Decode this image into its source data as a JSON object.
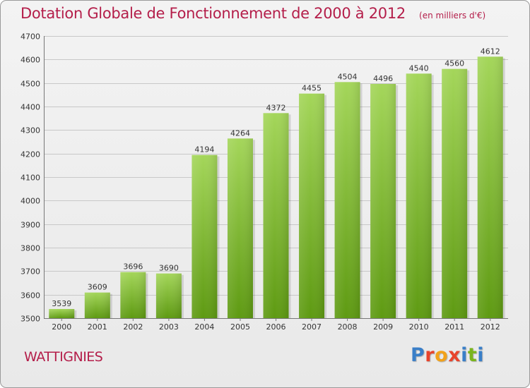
{
  "header": {
    "title": "Dotation Globale de Fonctionnement de 2000 à 2012",
    "subtitle": "(en milliers d'€)"
  },
  "location": "WATTIGNIES",
  "logo": {
    "text": "Proxiti",
    "colors": [
      "#3a7fc8",
      "#e8432c",
      "#f2a21a",
      "#e8432c",
      "#3a7fc8",
      "#7ab51d",
      "#3a7fc8"
    ]
  },
  "colors": {
    "title": "#b41e4a",
    "bar_light": "#a4d65a",
    "bar_dark": "#5e9a12",
    "grid": "#c8c8c8"
  },
  "chart_data": {
    "type": "bar",
    "categories": [
      "2000",
      "2001",
      "2002",
      "2003",
      "2004",
      "2005",
      "2006",
      "2007",
      "2008",
      "2009",
      "2010",
      "2011",
      "2012"
    ],
    "values": [
      3539,
      3609,
      3696,
      3690,
      4194,
      4264,
      4372,
      4455,
      4504,
      4496,
      4540,
      4560,
      4612
    ],
    "title": "Dotation Globale de Fonctionnement de 2000 à 2012",
    "subtitle": "(en milliers d'€)",
    "xlabel": "",
    "ylabel": "",
    "ylim": [
      3500,
      4700
    ],
    "yticks": [
      3500,
      3600,
      3700,
      3800,
      3900,
      4000,
      4100,
      4200,
      4300,
      4400,
      4500,
      4600,
      4700
    ],
    "grid": true,
    "legend": "none"
  }
}
